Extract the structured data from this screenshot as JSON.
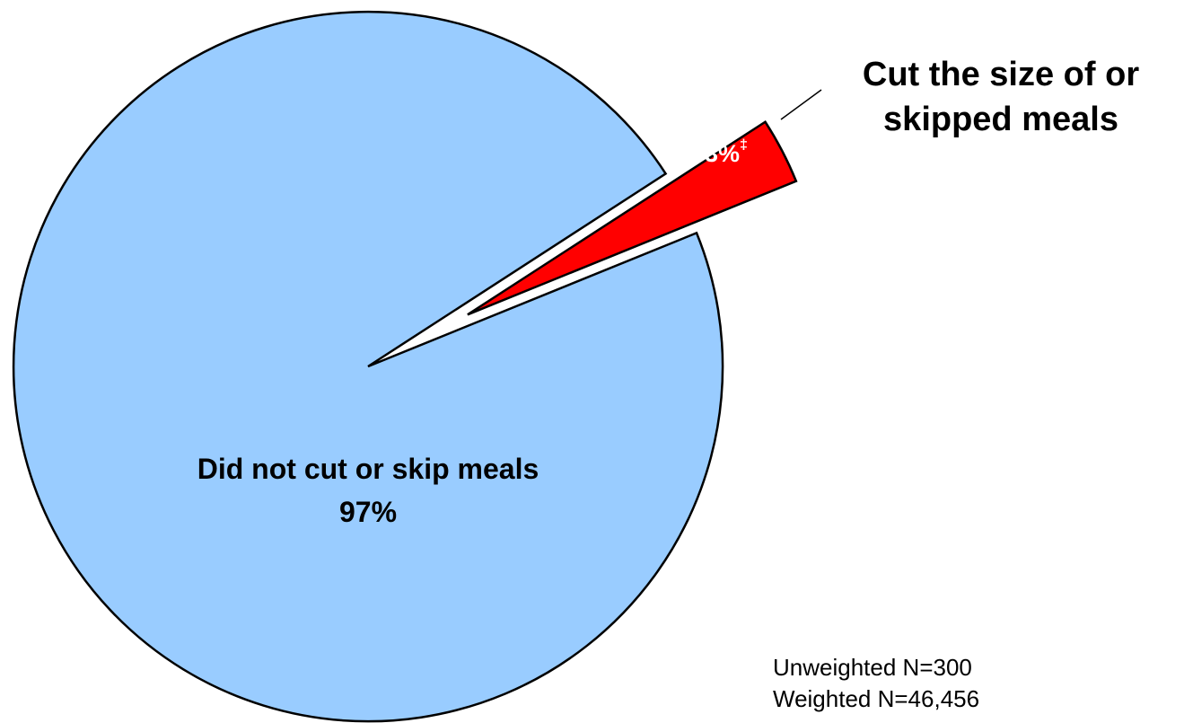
{
  "chart_data": {
    "type": "pie",
    "slices": [
      {
        "name": "Did not cut or skip meals",
        "value": 97,
        "label": "97%",
        "color": "#99ccff",
        "exploded": false
      },
      {
        "name": "Cut the size of or skipped meals",
        "value": 3,
        "label": "3%",
        "footnote_marker": "‡",
        "color": "#ff0000",
        "exploded": true
      }
    ],
    "callout_lines": [
      "Cut the size of or",
      "skipped meals"
    ],
    "inner_label_lines": [
      "Did not cut or skip meals",
      "97%"
    ]
  },
  "notes": {
    "unweighted": "Unweighted N=300",
    "weighted": "Weighted N=46,456"
  }
}
